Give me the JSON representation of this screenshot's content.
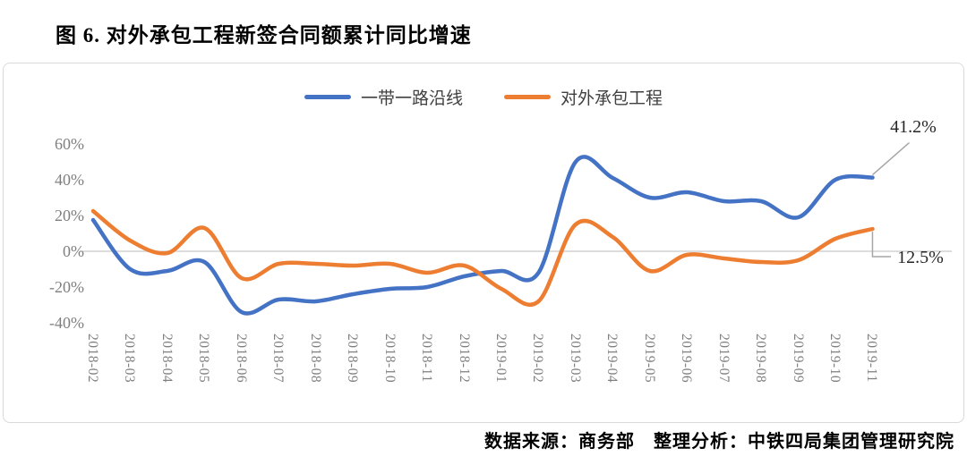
{
  "title": "图 6. 对外承包工程新签合同额累计同比增速",
  "footer": "数据来源：商务部　整理分析：中铁四局集团管理研究院",
  "colors": {
    "series_blue": "#4472C4",
    "series_orange": "#ED7D31",
    "zero_line": "#D2D2D2",
    "panel_border": "#D9D9D9",
    "axis_text": "#7F7F7F",
    "leader_line": "#A6A6A6",
    "annotation_text": "#262626"
  },
  "chart_data": {
    "type": "line",
    "title": "图 6. 对外承包工程新签合同额累计同比增速",
    "xlabel": "",
    "ylabel": "",
    "ylim": [
      -40,
      60
    ],
    "yticks": [
      60,
      40,
      20,
      0,
      -20,
      -40
    ],
    "ytick_labels": [
      "60%",
      "40%",
      "20%",
      "0%",
      "-20%",
      "-40%"
    ],
    "grid": "zero-line-only",
    "legend_position": "top-center",
    "smooth": true,
    "categories": [
      "2018-02",
      "2018-03",
      "2018-04",
      "2018-05",
      "2018-06",
      "2018-07",
      "2018-08",
      "2018-09",
      "2018-10",
      "2018-11",
      "2018-12",
      "2019-01",
      "2019-02",
      "2019-03",
      "2019-04",
      "2019-05",
      "2019-06",
      "2019-07",
      "2019-08",
      "2019-09",
      "2019-10",
      "2019-11"
    ],
    "series": [
      {
        "name": "一带一路沿线",
        "color": "#4472C4",
        "values": [
          17.5,
          -10,
          -11,
          -6,
          -34,
          -27,
          -28,
          -24,
          -21,
          -20,
          -14,
          -11,
          -12,
          50,
          41,
          30,
          33,
          28,
          28,
          19,
          40,
          41.2
        ]
      },
      {
        "name": "对外承包工程",
        "color": "#ED7D31",
        "values": [
          22.5,
          6,
          -1,
          13,
          -15,
          -7,
          -7,
          -8,
          -7,
          -12,
          -8,
          -21,
          -28,
          15,
          8,
          -11,
          -2,
          -4,
          -6,
          -5,
          7,
          12.5
        ]
      }
    ],
    "annotations": [
      {
        "target": "一带一路沿线",
        "text": "41.2%"
      },
      {
        "target": "对外承包工程",
        "text": "12.5%"
      }
    ]
  }
}
